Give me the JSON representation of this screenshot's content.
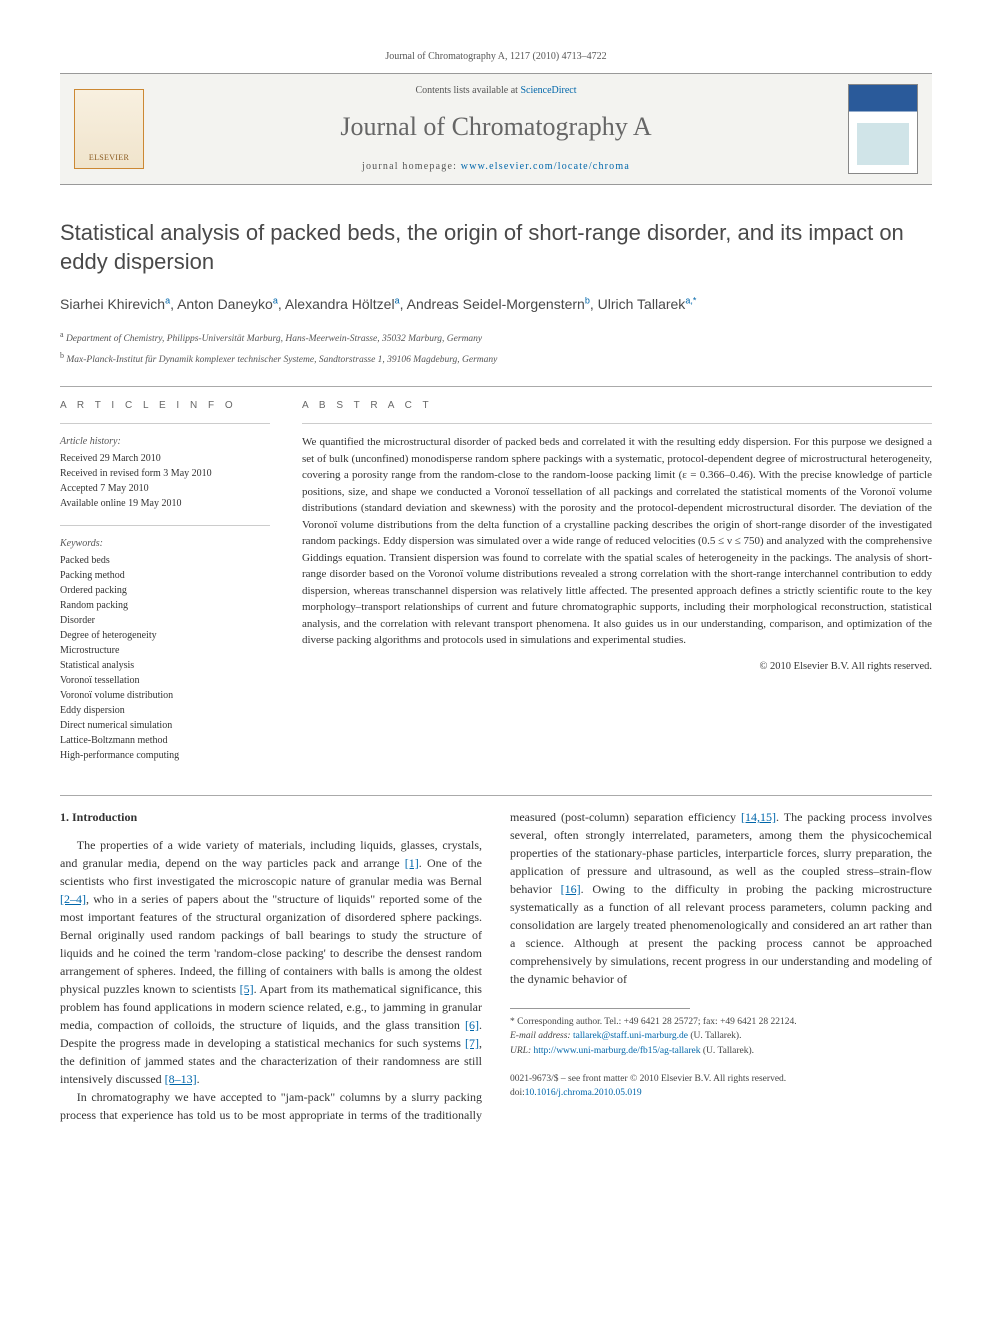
{
  "header": {
    "citation": "Journal of Chromatography A, 1217 (2010) 4713–4722"
  },
  "masthead": {
    "publisher_logo_text": "ELSEVIER",
    "contents_prefix": "Contents lists available at ",
    "contents_link_text": "ScienceDirect",
    "journal_name": "Journal of Chromatography A",
    "homepage_prefix": "journal homepage: ",
    "homepage_url_text": "www.elsevier.com/locate/chroma"
  },
  "article": {
    "title": "Statistical analysis of packed beds, the origin of short-range disorder, and its impact on eddy dispersion",
    "authors": [
      {
        "name": "Siarhei Khirevich",
        "aff": "a"
      },
      {
        "name": "Anton Daneyko",
        "aff": "a"
      },
      {
        "name": "Alexandra Höltzel",
        "aff": "a"
      },
      {
        "name": "Andreas Seidel-Morgenstern",
        "aff": "b"
      },
      {
        "name": "Ulrich Tallarek",
        "aff": "a,*"
      }
    ],
    "affiliations": [
      {
        "sup": "a",
        "text": "Department of Chemistry, Philipps-Universität Marburg, Hans-Meerwein-Strasse, 35032 Marburg, Germany"
      },
      {
        "sup": "b",
        "text": "Max-Planck-Institut für Dynamik komplexer technischer Systeme, Sandtorstrasse 1, 39106 Magdeburg, Germany"
      }
    ]
  },
  "info": {
    "heading": "A R T I C L E   I N F O",
    "history_label": "Article history:",
    "history": [
      "Received 29 March 2010",
      "Received in revised form 3 May 2010",
      "Accepted 7 May 2010",
      "Available online 19 May 2010"
    ],
    "keywords_label": "Keywords:",
    "keywords": [
      "Packed beds",
      "Packing method",
      "Ordered packing",
      "Random packing",
      "Disorder",
      "Degree of heterogeneity",
      "Microstructure",
      "Statistical analysis",
      "Voronoï tessellation",
      "Voronoï volume distribution",
      "Eddy dispersion",
      "Direct numerical simulation",
      "Lattice-Boltzmann method",
      "High-performance computing"
    ]
  },
  "abstract": {
    "heading": "A B S T R A C T",
    "text": "We quantified the microstructural disorder of packed beds and correlated it with the resulting eddy dispersion. For this purpose we designed a set of bulk (unconfined) monodisperse random sphere packings with a systematic, protocol-dependent degree of microstructural heterogeneity, covering a porosity range from the random-close to the random-loose packing limit (ε = 0.366–0.46). With the precise knowledge of particle positions, size, and shape we conducted a Voronoï tessellation of all packings and correlated the statistical moments of the Voronoï volume distributions (standard deviation and skewness) with the porosity and the protocol-dependent microstructural disorder. The deviation of the Voronoï volume distributions from the delta function of a crystalline packing describes the origin of short-range disorder of the investigated random packings. Eddy dispersion was simulated over a wide range of reduced velocities (0.5 ≤ ν ≤ 750) and analyzed with the comprehensive Giddings equation. Transient dispersion was found to correlate with the spatial scales of heterogeneity in the packings. The analysis of short-range disorder based on the Voronoï volume distributions revealed a strong correlation with the short-range interchannel contribution to eddy dispersion, whereas transchannel dispersion was relatively little affected. The presented approach defines a strictly scientific route to the key morphology–transport relationships of current and future chromatographic supports, including their morphological reconstruction, statistical analysis, and the correlation with relevant transport phenomena. It also guides us in our understanding, comparison, and optimization of the diverse packing algorithms and protocols used in simulations and experimental studies.",
    "copyright": "© 2010 Elsevier B.V. All rights reserved."
  },
  "body": {
    "section_heading": "1. Introduction",
    "p1a": "The properties of a wide variety of materials, including liquids, glasses, crystals, and granular media, depend on the way particles pack and arrange ",
    "r1": "[1]",
    "p1b": ". One of the scientists who first investigated the microscopic nature of granular media was Bernal ",
    "r2": "[2–4]",
    "p1c": ", who in a series of papers about the \"structure of liquids\" reported some of the most important features of the structural organization of disordered sphere packings. Bernal originally used random packings of ball bearings to study the structure of liquids and he coined the term 'random-close packing' to describe the densest random arrangement of spheres. Indeed, the filling of containers with balls is among the oldest physical puzzles known to scientists ",
    "r5": "[5]",
    "p1d": ". Apart from its mathematical significance, this problem has found applications in modern science related, e.g., to jamming in granular media, com",
    "p2a": "paction of colloids, the structure of liquids, and the glass transition ",
    "r6": "[6]",
    "p2b": ". Despite the progress made in developing a statistical mechanics for such systems ",
    "r7": "[7]",
    "p2c": ", the definition of jammed states and the characterization of their randomness are still intensively discussed ",
    "r8": "[8–13]",
    "p2d": ".",
    "p3a": "In chromatography we have accepted to \"jam-pack\" columns by a slurry packing process that experience has told us to be most appropriate in terms of the traditionally measured (post-column) separation efficiency ",
    "r14": "[14,15]",
    "p3b": ". The packing process involves several, often strongly interrelated, parameters, among them the physicochemical properties of the stationary-phase particles, interparticle forces, slurry preparation, the application of pressure and ultrasound, as well as the coupled stress–strain-flow behavior ",
    "r16": "[16]",
    "p3c": ". Owing to the difficulty in probing the packing microstructure systematically as a function of all relevant process parameters, column packing and consolidation are largely treated phenomenologically and considered an art rather than a science. Although at present the packing process cannot be approached comprehensively by simulations, recent progress in our understanding and modeling of the dynamic behavior of"
  },
  "footnotes": {
    "corr_prefix": "* Corresponding author. Tel.: +49 6421 28 25727; fax: +49 6421 28 22124.",
    "email_label": "E-mail address: ",
    "email": "tallarek@staff.uni-marburg.de",
    "email_suffix": " (U. Tallarek).",
    "url_label": "URL: ",
    "url": "http://www.uni-marburg.de/fb15/ag-tallarek",
    "url_suffix": " (U. Tallarek)."
  },
  "bottom": {
    "line1a": "0021-9673/$ – see front matter © 2010 Elsevier B.V. All rights reserved.",
    "doi_label": "doi:",
    "doi": "10.1016/j.chroma.2010.05.019"
  },
  "colors": {
    "link": "#0066aa",
    "text": "#333333",
    "muted": "#666666"
  }
}
